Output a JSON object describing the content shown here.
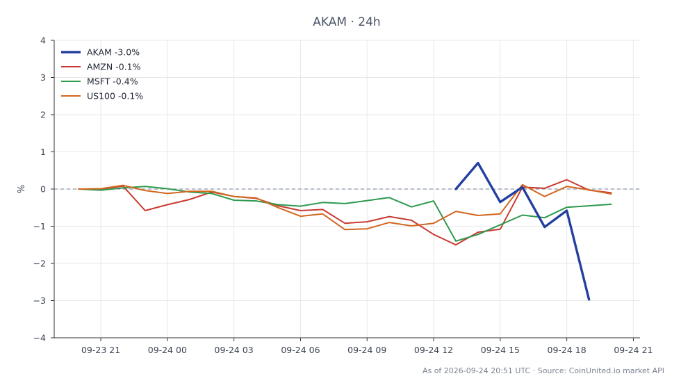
{
  "footer": "As of 2026-09-24 20:51 UTC · Source: CoinUnited.io market API",
  "chart_data": {
    "type": "line",
    "title": "AKAM · 24h",
    "xlabel": "",
    "ylabel": "%",
    "x_tick_labels": [
      "09-23 21",
      "09-24 00",
      "09-24 03",
      "09-24 06",
      "09-24 09",
      "09-24 12",
      "09-24 15",
      "09-24 18",
      "09-24 21"
    ],
    "x_tick_hours": [
      0,
      3,
      6,
      9,
      12,
      15,
      18,
      21,
      24
    ],
    "xlim_hours": [
      -2.1,
      24.3
    ],
    "ylim": [
      -4,
      4
    ],
    "y_ticks": [
      -4,
      -3,
      -2,
      -1,
      0,
      1,
      2,
      3,
      4
    ],
    "y_tick_labels": [
      "−4",
      "−3",
      "−2",
      "−1",
      "0",
      "1",
      "2",
      "3",
      "4"
    ],
    "reference_line": 0,
    "grid": true,
    "legend": "top-left",
    "series": [
      {
        "name": "AKAM -3.0%",
        "color": "#2340a0",
        "emphasis": true,
        "x": [
          16,
          17,
          18,
          19,
          20,
          21,
          22
        ],
        "y": [
          0.0,
          0.7,
          -0.35,
          0.05,
          -1.02,
          -0.58,
          -2.97
        ]
      },
      {
        "name": "AMZN -0.1%",
        "color": "#c93a32",
        "x": [
          -1,
          0,
          1,
          2,
          3,
          4,
          5,
          6,
          7,
          8,
          9,
          10,
          11,
          12,
          13,
          14,
          15,
          16,
          17,
          18,
          19,
          20,
          21,
          22,
          23
        ],
        "y": [
          0.0,
          0.0,
          0.08,
          -0.58,
          -0.42,
          -0.28,
          -0.08,
          -0.2,
          -0.25,
          -0.45,
          -0.58,
          -0.55,
          -0.92,
          -0.88,
          -0.74,
          -0.84,
          -1.22,
          -1.5,
          -1.16,
          -1.08,
          0.05,
          0.02,
          0.25,
          -0.03,
          -0.1
        ]
      },
      {
        "name": "MSFT -0.4%",
        "color": "#2e9a4e",
        "x": [
          -1,
          0,
          1,
          2,
          3,
          4,
          5,
          6,
          7,
          8,
          9,
          10,
          11,
          12,
          13,
          14,
          15,
          16,
          17,
          18,
          19,
          20,
          21,
          22,
          23
        ],
        "y": [
          0.0,
          -0.03,
          0.03,
          0.07,
          0.01,
          -0.08,
          -0.12,
          -0.3,
          -0.32,
          -0.42,
          -0.46,
          -0.36,
          -0.39,
          -0.31,
          -0.23,
          -0.48,
          -0.32,
          -1.4,
          -1.22,
          -0.96,
          -0.7,
          -0.77,
          -0.49,
          -0.45,
          -0.41
        ]
      },
      {
        "name": "US100 -0.1%",
        "color": "#d2661e",
        "x": [
          -1,
          0,
          1,
          2,
          3,
          4,
          5,
          6,
          7,
          8,
          9,
          10,
          11,
          12,
          13,
          14,
          15,
          16,
          17,
          18,
          19,
          20,
          21,
          22,
          23
        ],
        "y": [
          0.0,
          0.01,
          0.1,
          -0.04,
          -0.12,
          -0.06,
          -0.06,
          -0.2,
          -0.24,
          -0.5,
          -0.73,
          -0.67,
          -1.09,
          -1.07,
          -0.9,
          -0.99,
          -0.92,
          -0.6,
          -0.71,
          -0.67,
          0.12,
          -0.2,
          0.07,
          -0.02,
          -0.13
        ]
      }
    ]
  }
}
